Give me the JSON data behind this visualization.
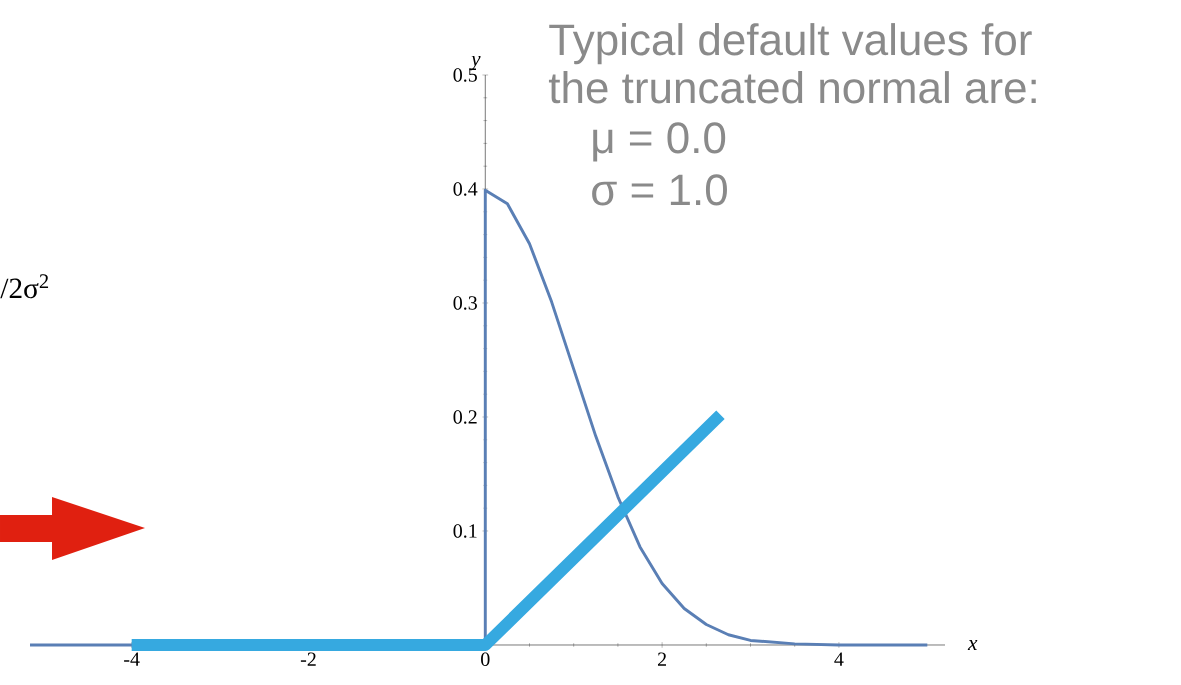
{
  "chart_data": {
    "type": "line",
    "xlabel": "x",
    "ylabel": "y",
    "xlim": [
      -5.15,
      5.2
    ],
    "ylim": [
      0,
      0.5
    ],
    "xticks": [
      -4,
      -2,
      0,
      2,
      4
    ],
    "yticks": [
      0.1,
      0.2,
      0.3,
      0.4,
      0.5
    ],
    "marker": "none",
    "series": [
      {
        "color": "#5a7fb5",
        "x": [
          -5.15,
          -4,
          -2,
          0,
          0,
          0.25,
          0.5,
          0.75,
          1,
          1.25,
          1.5,
          1.75,
          2,
          2.25,
          2.5,
          2.75,
          3,
          3.5,
          4,
          4.5,
          5
        ],
        "values": [
          0,
          0,
          0,
          0,
          0.399,
          0.387,
          0.352,
          0.301,
          0.242,
          0.183,
          0.13,
          0.086,
          0.054,
          0.032,
          0.018,
          0.009,
          0.004,
          0.001,
          0,
          0,
          0
        ]
      },
      {
        "color": "#36a9e0",
        "x": [
          -4,
          0,
          2.66
        ],
        "values": [
          0,
          0,
          0.202
        ]
      }
    ],
    "annotations": [
      "Typical default values for",
      "the truncated normal are:",
      "μ = 0.0",
      "σ = 1.0",
      "/2σ$^{2}$"
    ]
  }
}
